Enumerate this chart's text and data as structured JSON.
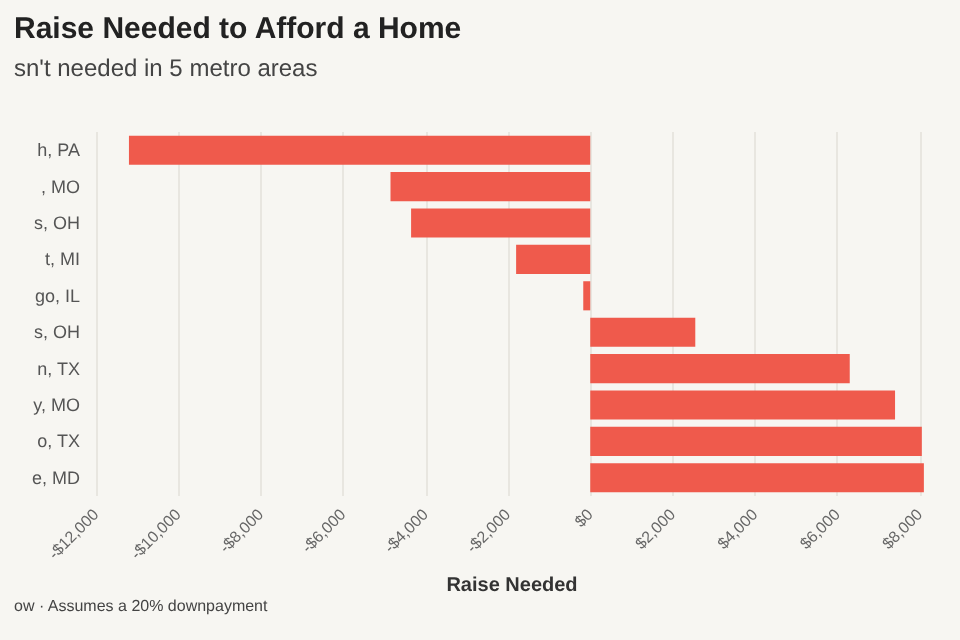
{
  "chart_data": {
    "type": "bar",
    "orientation": "horizontal",
    "title": "Raise Needed to Afford a Home",
    "subtitle": "sn't needed in 5 metro areas",
    "xlabel": "Raise Needed",
    "annotations": [
      "ow · Assumes a 20% downpayment"
    ],
    "categories": [
      "h, PA",
      ", MO",
      "s, OH",
      "t, MI",
      "go, IL",
      "s, OH",
      "n, TX",
      "y, MO",
      "o, TX",
      "e, MD"
    ],
    "values": [
      -11200,
      -4850,
      -4350,
      -1800,
      -170,
      2550,
      6300,
      7400,
      8050,
      8100
    ],
    "color": "#ef5a4c",
    "xlim": [
      -12000,
      8200
    ],
    "xticks": [
      {
        "value": -12000,
        "label": "-$12,000"
      },
      {
        "value": -10000,
        "label": "-$10,000"
      },
      {
        "value": -8000,
        "label": "-$8,000"
      },
      {
        "value": -6000,
        "label": "-$6,000"
      },
      {
        "value": -4000,
        "label": "-$4,000"
      },
      {
        "value": -2000,
        "label": "-$2,000"
      },
      {
        "value": 0,
        "label": "$0"
      },
      {
        "value": 2000,
        "label": "$2,000"
      },
      {
        "value": 4000,
        "label": "$4,000"
      },
      {
        "value": 6000,
        "label": "$6,000"
      },
      {
        "value": 8000,
        "label": "$8,000"
      }
    ],
    "grid": "x"
  }
}
